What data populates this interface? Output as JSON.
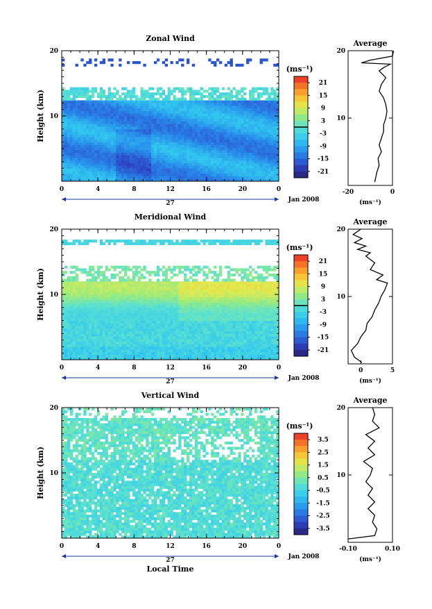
{
  "figure": {
    "date_label": "Jan 2008",
    "day_label": "27",
    "xlabel": "Local Time",
    "average_title": "Average",
    "unit": "(ms⁻¹)",
    "colorbar_unit": "(ms⁻¹)"
  },
  "chart_data": [
    {
      "type": "heatmap",
      "title": "Zonal Wind",
      "ylabel": "Height (km)",
      "xlim": [
        0,
        24
      ],
      "ylim": [
        0,
        20
      ],
      "x_ticks": [
        "0",
        "4",
        "8",
        "12",
        "16",
        "20",
        "0"
      ],
      "y_ticks": [
        "10",
        "20"
      ],
      "colorbar": {
        "ticks": [
          "21",
          "15",
          "9",
          "3",
          "-3",
          "-9",
          "-15",
          "-21"
        ],
        "range": [
          -24,
          24
        ],
        "zero_line": true
      },
      "profile": {
        "title": "Average",
        "x_ticks": [
          "-20",
          "0"
        ],
        "xlim": [
          -20,
          0
        ],
        "y_ticks": [
          "10",
          "20"
        ],
        "points": [
          [
            -8,
            0.5
          ],
          [
            -7,
            2
          ],
          [
            -6,
            3
          ],
          [
            -6.5,
            4
          ],
          [
            -5,
            5
          ],
          [
            -6,
            6
          ],
          [
            -5,
            7
          ],
          [
            -4,
            8
          ],
          [
            -4,
            9
          ],
          [
            -3,
            10
          ],
          [
            -2.5,
            11
          ],
          [
            -3,
            12
          ],
          [
            -4,
            13
          ],
          [
            -6,
            14
          ],
          [
            -5,
            15
          ],
          [
            -3,
            16
          ],
          [
            -6,
            17
          ],
          [
            -4,
            17.5
          ],
          [
            -1,
            18
          ],
          [
            -14,
            18.2
          ],
          [
            -10,
            18.6
          ],
          [
            0,
            19.2
          ],
          [
            0.5,
            20
          ]
        ]
      }
    },
    {
      "type": "heatmap",
      "title": "Meridional Wind",
      "ylabel": "Height (km)",
      "xlim": [
        0,
        24
      ],
      "ylim": [
        0,
        20
      ],
      "x_ticks": [
        "0",
        "4",
        "8",
        "12",
        "16",
        "20",
        "0"
      ],
      "y_ticks": [
        "10",
        "20"
      ],
      "colorbar": {
        "ticks": [
          "21",
          "15",
          "9",
          "3",
          "-3",
          "-9",
          "-15",
          "-21"
        ],
        "range": [
          -24,
          24
        ],
        "zero_line": true
      },
      "profile": {
        "title": "Average",
        "x_ticks": [
          "0",
          "5"
        ],
        "xlim": [
          -2,
          5
        ],
        "y_ticks": [
          "10",
          "20"
        ],
        "points": [
          [
            0.2,
            0.2
          ],
          [
            -1,
            1
          ],
          [
            -1.5,
            2
          ],
          [
            -0.5,
            3
          ],
          [
            0,
            4
          ],
          [
            0.8,
            5
          ],
          [
            1,
            6
          ],
          [
            1.8,
            7
          ],
          [
            2.2,
            8
          ],
          [
            2.8,
            9
          ],
          [
            3.2,
            10
          ],
          [
            3.8,
            11
          ],
          [
            4.2,
            12
          ],
          [
            2.5,
            12.5
          ],
          [
            3.5,
            13.2
          ],
          [
            1.5,
            14
          ],
          [
            2.2,
            15
          ],
          [
            0.8,
            16
          ],
          [
            1.5,
            16.5
          ],
          [
            -0.5,
            17
          ],
          [
            0.8,
            17.5
          ],
          [
            -1,
            18
          ],
          [
            0.2,
            18.6
          ],
          [
            -1.2,
            19.2
          ],
          [
            0,
            20
          ]
        ]
      }
    },
    {
      "type": "heatmap",
      "title": "Vertical Wind",
      "ylabel": "Height (km)",
      "xlim": [
        0,
        24
      ],
      "ylim": [
        0,
        20
      ],
      "x_ticks": [
        "0",
        "4",
        "8",
        "12",
        "16",
        "20",
        "0"
      ],
      "y_ticks": [
        "10",
        "20"
      ],
      "colorbar": {
        "ticks": [
          "3.5",
          "2.5",
          "1.5",
          "0.5",
          "-0.5",
          "-1.5",
          "-2.5",
          "-3.5"
        ],
        "range": [
          -4,
          4
        ],
        "zero_line": false
      },
      "profile": {
        "title": "Average",
        "x_ticks": [
          "-0.10",
          "0.10"
        ],
        "xlim": [
          -0.1,
          0.1
        ],
        "y_ticks": [
          "10",
          "20"
        ],
        "points": [
          [
            -0.1,
            0.5
          ],
          [
            0.02,
            1
          ],
          [
            0.03,
            2
          ],
          [
            0.01,
            3
          ],
          [
            0.02,
            4
          ],
          [
            -0.01,
            5
          ],
          [
            0.02,
            6
          ],
          [
            -0.01,
            7
          ],
          [
            0.01,
            8
          ],
          [
            -0.02,
            9
          ],
          [
            0.0,
            10
          ],
          [
            0.01,
            11
          ],
          [
            -0.03,
            12
          ],
          [
            0.02,
            13
          ],
          [
            -0.01,
            14
          ],
          [
            0.02,
            15
          ],
          [
            -0.02,
            16
          ],
          [
            0.04,
            17
          ],
          [
            0.01,
            18
          ],
          [
            0.02,
            19
          ],
          [
            0.01,
            20
          ]
        ]
      }
    }
  ]
}
